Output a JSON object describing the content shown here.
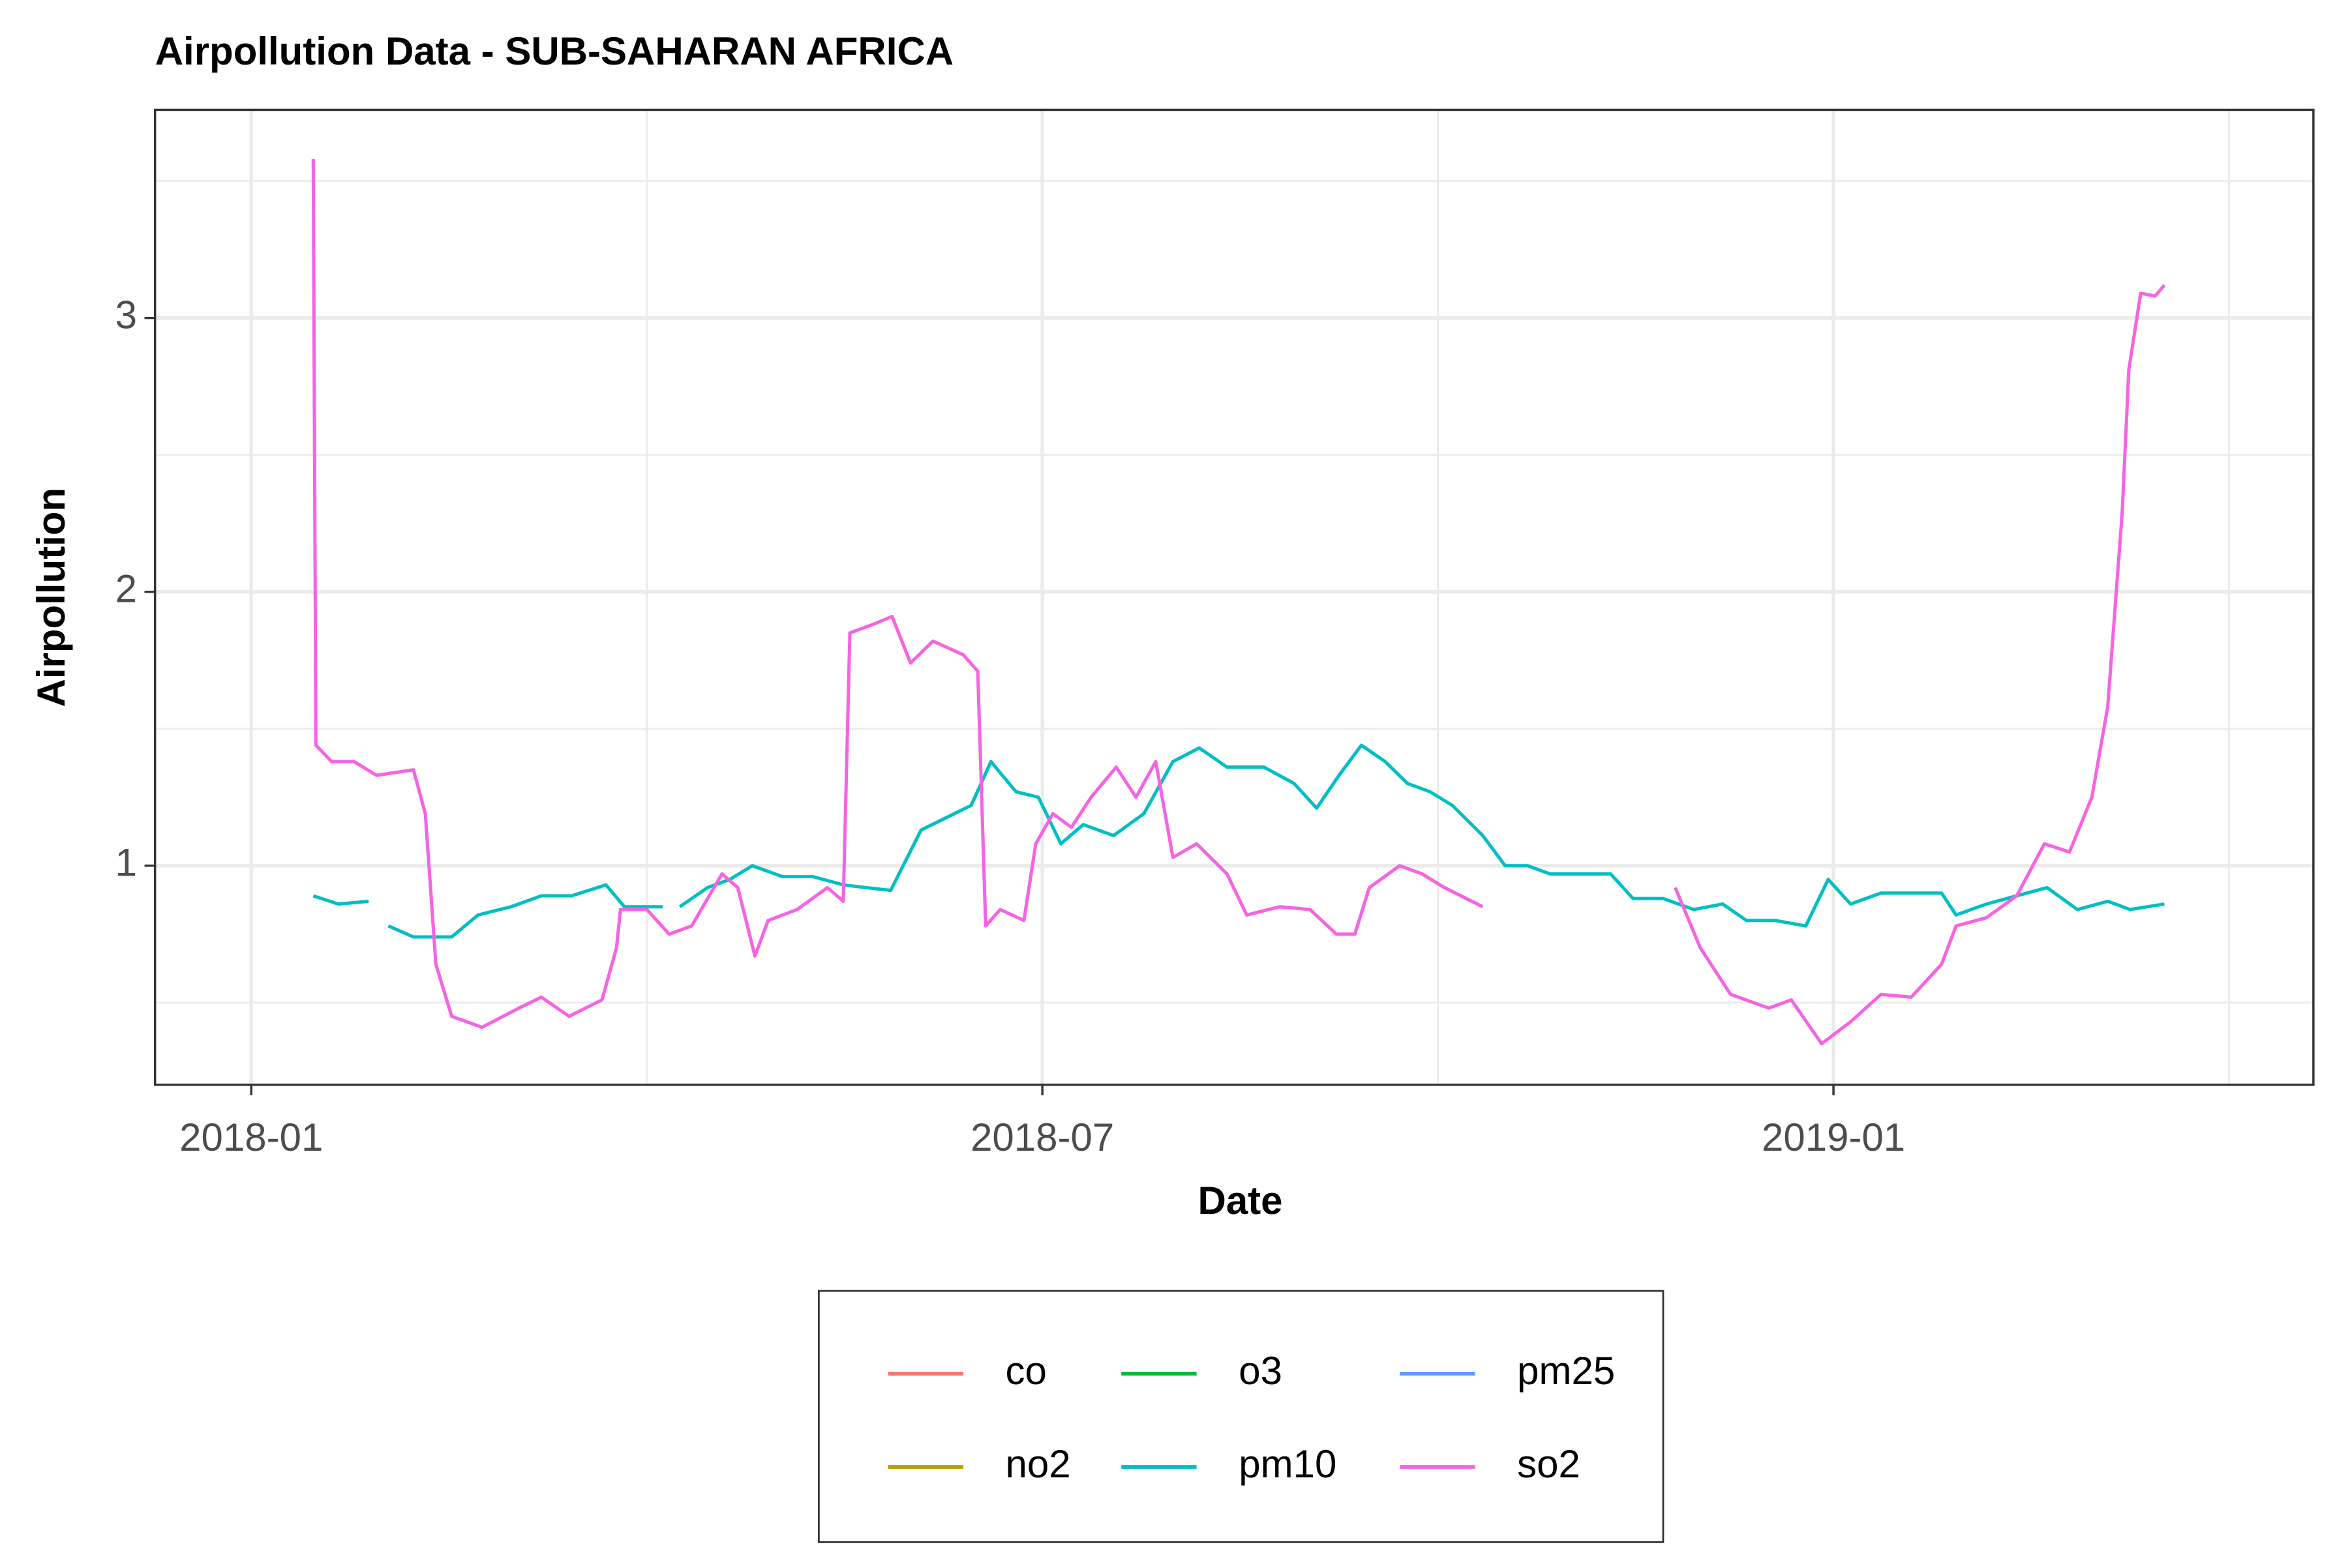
{
  "chart_data": {
    "type": "line",
    "title": "Airpollution Data - SUB-SAHARAN AFRICA",
    "x_label": "Date",
    "y_label": "Airpollution",
    "xlim": [
      -0.73,
      15.64
    ],
    "xticks": [
      {
        "value": 0,
        "label": "2018-01"
      },
      {
        "value": 6,
        "label": "2018-07"
      },
      {
        "value": 12,
        "label": "2019-01"
      }
    ],
    "x_minor_ticks": [
      3,
      9,
      15
    ],
    "ylim": [
      0.2,
      3.76
    ],
    "yticks": [
      1,
      2,
      3
    ],
    "y_minor_ticks": [
      0.5,
      1.5,
      2.5,
      3.5
    ],
    "grid": true,
    "legend": "bottom",
    "series": [
      {
        "name": "co",
        "color": "#f8766d",
        "x": [],
        "values": []
      },
      {
        "name": "no2",
        "color": "#b79f00",
        "x": [],
        "values": []
      },
      {
        "name": "o3",
        "color": "#00ba38",
        "x": [],
        "values": []
      },
      {
        "name": "pm10",
        "color": "#00bfc4",
        "x": [
          0.47,
          0.66,
          0.89,
          0.95,
          1.04,
          1.23,
          1.52,
          1.72,
          1.97,
          2.2,
          2.43,
          2.69,
          2.83,
          3.12,
          3.2,
          3.25,
          3.46,
          3.63,
          3.8,
          4.03,
          4.26,
          4.49,
          4.66,
          4.85,
          5.08,
          5.29,
          5.46,
          5.61,
          5.8,
          5.97,
          6.14,
          6.31,
          6.54,
          6.77,
          6.99,
          7.19,
          7.4,
          7.68,
          7.91,
          8.08,
          8.25,
          8.42,
          8.6,
          8.77,
          8.94,
          9.11,
          9.34,
          9.51,
          9.68,
          9.85,
          10.08,
          10.31,
          10.48,
          10.71,
          10.94,
          11.16,
          11.34,
          11.56,
          11.79,
          11.96,
          12.13,
          12.36,
          12.59,
          12.82,
          12.93,
          13.16,
          13.39,
          13.62,
          13.85,
          14.08,
          14.25,
          14.51
        ],
        "values": [
          0.89,
          0.86,
          0.87,
          null,
          0.78,
          0.74,
          0.74,
          0.82,
          0.85,
          0.89,
          0.89,
          0.93,
          0.85,
          0.85,
          null,
          0.85,
          0.92,
          0.95,
          1.0,
          0.96,
          0.96,
          0.93,
          0.92,
          0.91,
          1.13,
          1.18,
          1.22,
          1.38,
          1.27,
          1.25,
          1.08,
          1.15,
          1.11,
          1.19,
          1.38,
          1.43,
          1.36,
          1.36,
          1.3,
          1.21,
          1.33,
          1.44,
          1.38,
          1.3,
          1.27,
          1.22,
          1.11,
          1.0,
          1.0,
          0.97,
          0.97,
          0.97,
          0.88,
          0.88,
          0.84,
          0.86,
          0.8,
          0.8,
          0.78,
          0.95,
          0.86,
          0.9,
          0.9,
          0.9,
          0.82,
          0.86,
          0.89,
          0.92,
          0.84,
          0.87,
          0.84,
          0.86
        ]
      },
      {
        "name": "pm25",
        "color": "#619cff",
        "x": [],
        "values": []
      },
      {
        "name": "so2",
        "color": "#f564e3",
        "x": [
          0.47,
          0.49,
          0.61,
          0.78,
          0.95,
          1.23,
          1.32,
          1.4,
          1.52,
          1.75,
          2.03,
          2.2,
          2.41,
          2.66,
          2.77,
          2.8,
          3.0,
          3.17,
          3.34,
          3.57,
          3.69,
          3.82,
          3.92,
          4.14,
          4.37,
          4.49,
          4.54,
          4.71,
          4.86,
          5.0,
          5.17,
          5.4,
          5.51,
          5.57,
          5.68,
          5.86,
          5.95,
          6.08,
          6.22,
          6.37,
          6.56,
          6.71,
          6.86,
          6.99,
          7.17,
          7.4,
          7.55,
          7.8,
          8.03,
          8.23,
          8.37,
          8.48,
          8.71,
          8.88,
          9.05,
          9.34,
          10,
          10.8,
          10.99,
          11.22,
          11.51,
          11.68,
          11.91,
          12.13,
          12.36,
          12.59,
          12.82,
          12.93,
          13.16,
          13.39,
          13.6,
          13.79,
          13.96,
          14.08,
          14.19,
          14.24,
          14.33,
          14.44,
          14.51
        ],
        "values": [
          3.58,
          1.44,
          1.38,
          1.38,
          1.33,
          1.35,
          1.19,
          0.64,
          0.45,
          0.41,
          0.48,
          0.52,
          0.45,
          0.51,
          0.7,
          0.84,
          0.84,
          0.75,
          0.78,
          0.97,
          0.92,
          0.67,
          0.8,
          0.84,
          0.92,
          0.87,
          1.85,
          1.88,
          1.91,
          1.74,
          1.82,
          1.77,
          1.71,
          0.78,
          0.84,
          0.8,
          1.08,
          1.19,
          1.14,
          1.25,
          1.36,
          1.25,
          1.38,
          1.03,
          1.08,
          0.97,
          0.82,
          0.85,
          0.84,
          0.75,
          0.75,
          0.92,
          1.0,
          0.97,
          0.92,
          0.85,
          null,
          0.92,
          0.7,
          0.53,
          0.48,
          0.51,
          0.35,
          0.43,
          0.53,
          0.52,
          0.64,
          0.78,
          0.81,
          0.89,
          1.08,
          1.05,
          1.25,
          1.58,
          2.29,
          2.81,
          3.09,
          3.08,
          3.12
        ]
      }
    ]
  }
}
